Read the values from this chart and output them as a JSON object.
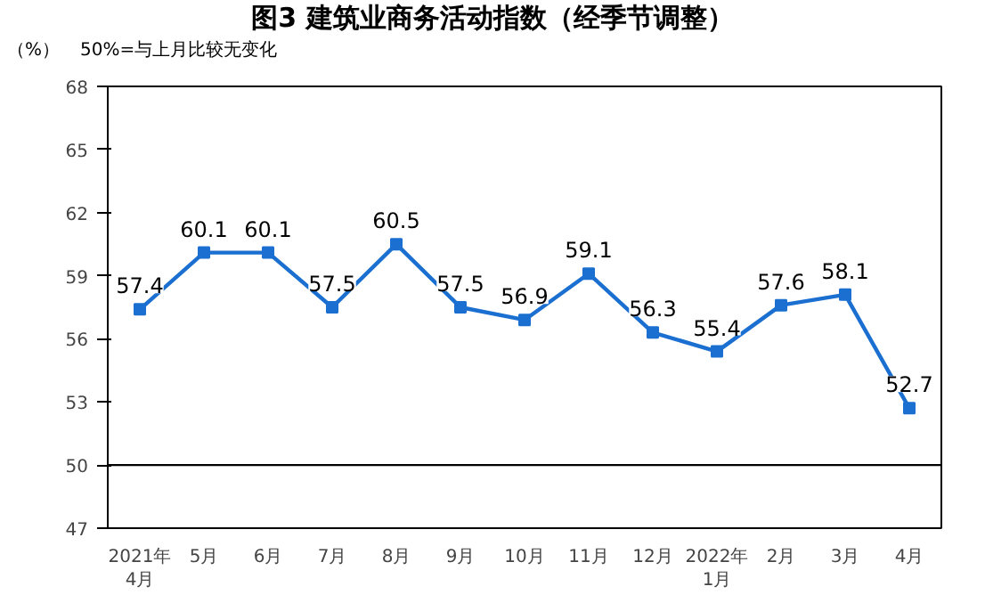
{
  "chart_data": {
    "type": "line",
    "title": "图3  建筑业商务活动指数（经季节调整）",
    "ylabel": "（%）",
    "annotations": [
      "50%=与上月比较无变化"
    ],
    "categories": [
      "2021年\n4月",
      "5月",
      "6月",
      "7月",
      "8月",
      "9月",
      "10月",
      "11月",
      "12月",
      "2022年\n1月",
      "2月",
      "3月",
      "4月"
    ],
    "series": [
      {
        "color": "#1a6fd0",
        "values": [
          57.4,
          60.1,
          60.1,
          57.5,
          60.5,
          57.5,
          56.9,
          59.1,
          56.3,
          55.4,
          57.6,
          58.1,
          52.7
        ]
      }
    ],
    "ylim": [
      47,
      68
    ],
    "yticks": [
      47,
      50,
      53,
      56,
      59,
      62,
      65,
      68
    ],
    "ref_lines": [
      {
        "axis": "y",
        "value": 50,
        "color": "#000000"
      }
    ],
    "data_labels": true,
    "marker": "square",
    "line_style": "solid",
    "grid": false
  }
}
